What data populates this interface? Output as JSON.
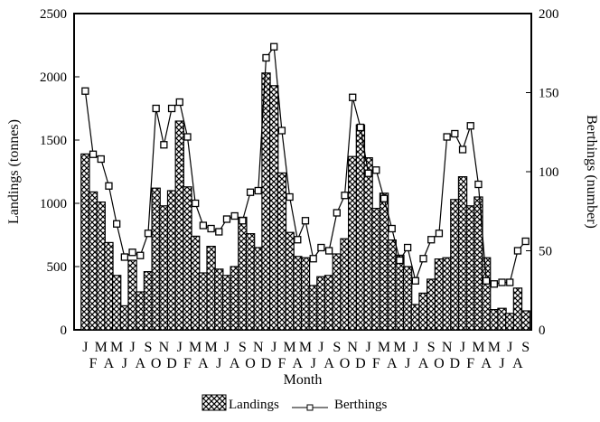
{
  "chart_data": {
    "type": "bar+line",
    "xlabel": "Month",
    "ylabel_left": "Landings (tonnes)",
    "ylabel_right": "Berthings (number)",
    "ylim_left": [
      0,
      2500
    ],
    "ylim_right": [
      0,
      200
    ],
    "yticks_left": [
      "0",
      "500",
      "1000",
      "1500",
      "2000",
      "2500"
    ],
    "yticks_right": [
      "0",
      "50",
      "100",
      "150",
      "200"
    ],
    "categories": [
      "J",
      "F",
      "M",
      "A",
      "M",
      "J",
      "J",
      "A",
      "S",
      "O",
      "N",
      "D",
      "J",
      "F",
      "M",
      "A",
      "M",
      "J",
      "J",
      "A",
      "S",
      "O",
      "N",
      "D",
      "J",
      "F",
      "M",
      "A",
      "M",
      "J",
      "J",
      "A",
      "S",
      "O",
      "N",
      "D",
      "J",
      "F",
      "M",
      "A",
      "M",
      "J",
      "J",
      "A",
      "S",
      "O",
      "N",
      "D",
      "J",
      "F",
      "M",
      "A",
      "M",
      "J",
      "J",
      "A",
      "S"
    ],
    "legend_position": "bottom",
    "series": [
      {
        "name": "Landings",
        "type": "bar",
        "axis": "left",
        "values": [
          1390,
          1090,
          1010,
          690,
          430,
          190,
          550,
          300,
          460,
          1120,
          980,
          1100,
          1650,
          1130,
          740,
          450,
          660,
          480,
          430,
          500,
          890,
          760,
          650,
          2030,
          1930,
          1240,
          770,
          580,
          570,
          350,
          420,
          430,
          600,
          720,
          1370,
          1620,
          1360,
          960,
          1080,
          710,
          590,
          500,
          200,
          290,
          400,
          560,
          570,
          1030,
          1210,
          980,
          1050,
          570,
          160,
          170,
          130,
          330,
          150
        ]
      },
      {
        "name": "Berthings",
        "type": "line",
        "axis": "right",
        "values": [
          151,
          111,
          108,
          91,
          67,
          46,
          49,
          47,
          61,
          140,
          117,
          140,
          144,
          122,
          80,
          66,
          64,
          62,
          70,
          72,
          69,
          87,
          88,
          172,
          179,
          126,
          84,
          57,
          69,
          45,
          52,
          50,
          74,
          85,
          147,
          128,
          99,
          101,
          83,
          64,
          44,
          52,
          31,
          45,
          57,
          61,
          122,
          124,
          114,
          129,
          92,
          31,
          29,
          30,
          30,
          50,
          56
        ]
      }
    ]
  }
}
